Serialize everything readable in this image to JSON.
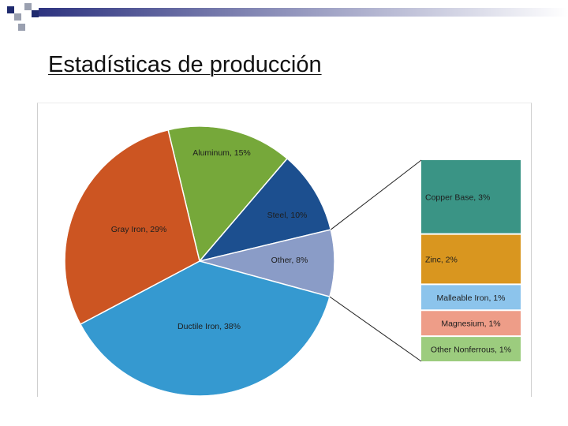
{
  "slide": {
    "title": "Estadísticas de producción"
  },
  "colors": {
    "deco_navy": "#1f2a6e",
    "deco_gray": "#9aa0b0",
    "deco_bar_start": "#2e3480",
    "deco_bar_end": "#ffffff",
    "leader_line": "#222222"
  },
  "chart_data": {
    "type": "pie",
    "unit": "%",
    "slices": [
      {
        "label": "Aluminum, 15%",
        "name": "Aluminum",
        "value": 15,
        "color": "#76a83a"
      },
      {
        "label": "Steel, 10%",
        "name": "Steel",
        "value": 10,
        "color": "#1c4f8f"
      },
      {
        "label": "Other, 8%",
        "name": "Other",
        "value": 8,
        "color": "#8a9cc7"
      },
      {
        "label": "Ductile Iron, 38%",
        "name": "Ductile Iron",
        "value": 38,
        "color": "#3599d0"
      },
      {
        "label": "Gray Iron, 29%",
        "name": "Gray Iron",
        "value": 29,
        "color": "#cc5522"
      }
    ],
    "breakout": {
      "of_slice": "Other",
      "segments": [
        {
          "label": "Copper Base, 3%",
          "name": "Copper Base",
          "value": 3,
          "color": "#3a9485"
        },
        {
          "label": "Zinc, 2%",
          "name": "Zinc",
          "value": 2,
          "color": "#d9961f"
        },
        {
          "label": "Malleable Iron, 1%",
          "name": "Malleable Iron",
          "value": 1,
          "color": "#8cc4ec"
        },
        {
          "label": "Magnesium, 1%",
          "name": "Magnesium",
          "value": 1,
          "color": "#ee9d88"
        },
        {
          "label": "Other Nonferrous, 1%",
          "name": "Other Nonferrous",
          "value": 1,
          "color": "#9ccc7e"
        }
      ]
    },
    "legend": "none"
  }
}
